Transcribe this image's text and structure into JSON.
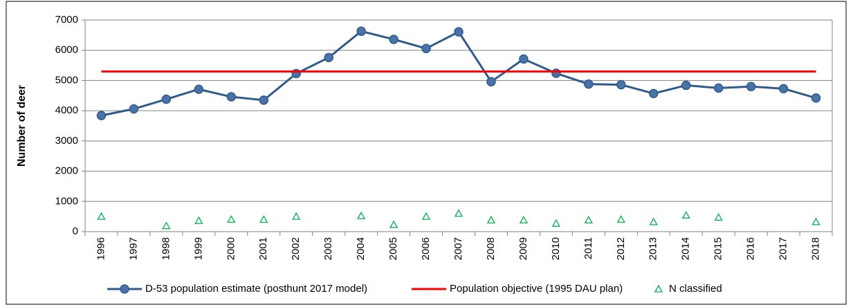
{
  "chart_data": {
    "type": "line",
    "y_label": "Number of deer",
    "categories": [
      "1996",
      "1997",
      "1998",
      "1999",
      "2000",
      "2001",
      "2002",
      "2003",
      "2004",
      "2005",
      "2006",
      "2007",
      "2008",
      "2009",
      "2010",
      "2011",
      "2012",
      "2013",
      "2014",
      "2015",
      "2016",
      "2017",
      "2018"
    ],
    "series": [
      {
        "name": "D-53 population estimate (posthunt 2017 model)",
        "color": "#2f5a8c",
        "line": true,
        "marker": "circle",
        "values": [
          3840,
          4060,
          4380,
          4710,
          4460,
          4350,
          5230,
          5760,
          6630,
          6360,
          6060,
          6610,
          4960,
          5710,
          5240,
          4880,
          4860,
          4570,
          4840,
          4750,
          4800,
          4730,
          4420
        ]
      },
      {
        "name": "Population objective (1995 DAU plan)",
        "color": "#ff0000",
        "line": true,
        "marker": "none",
        "values": [
          5300,
          5300,
          5300,
          5300,
          5300,
          5300,
          5300,
          5300,
          5300,
          5300,
          5300,
          5300,
          5300,
          5300,
          5300,
          5300,
          5300,
          5300,
          5300,
          5300,
          5300,
          5300,
          5300
        ]
      },
      {
        "name": "N classified",
        "color": "#00b050",
        "line": false,
        "marker": "triangle",
        "values": [
          500,
          null,
          190,
          360,
          400,
          400,
          500,
          null,
          520,
          230,
          500,
          600,
          380,
          380,
          270,
          380,
          400,
          320,
          540,
          470,
          null,
          null,
          320
        ]
      }
    ],
    "ylim": [
      0,
      7000
    ],
    "yticks": [
      0,
      1000,
      2000,
      3000,
      4000,
      5000,
      6000,
      7000
    ],
    "grid": true
  }
}
